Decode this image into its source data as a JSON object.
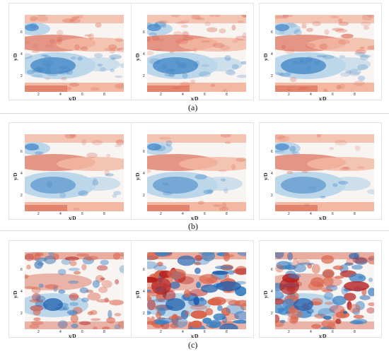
{
  "axes": {
    "xlabel": "x/D",
    "ylabel": "y/D",
    "xticks": [
      "2",
      "4",
      "6",
      "8"
    ],
    "yticks": [
      "2",
      "4",
      "6"
    ]
  },
  "rows": [
    {
      "label": "(a)"
    },
    {
      "label": "(b)"
    },
    {
      "label": "(c)"
    }
  ],
  "colors": {
    "red": "#d9634b",
    "lightred": "#f2b8a2",
    "white": "#f8f4f2",
    "lightblue": "#bcd6ea",
    "blue": "#3d83c4",
    "darkblue": "#1f5fae",
    "darkred": "#b51f1f"
  }
}
